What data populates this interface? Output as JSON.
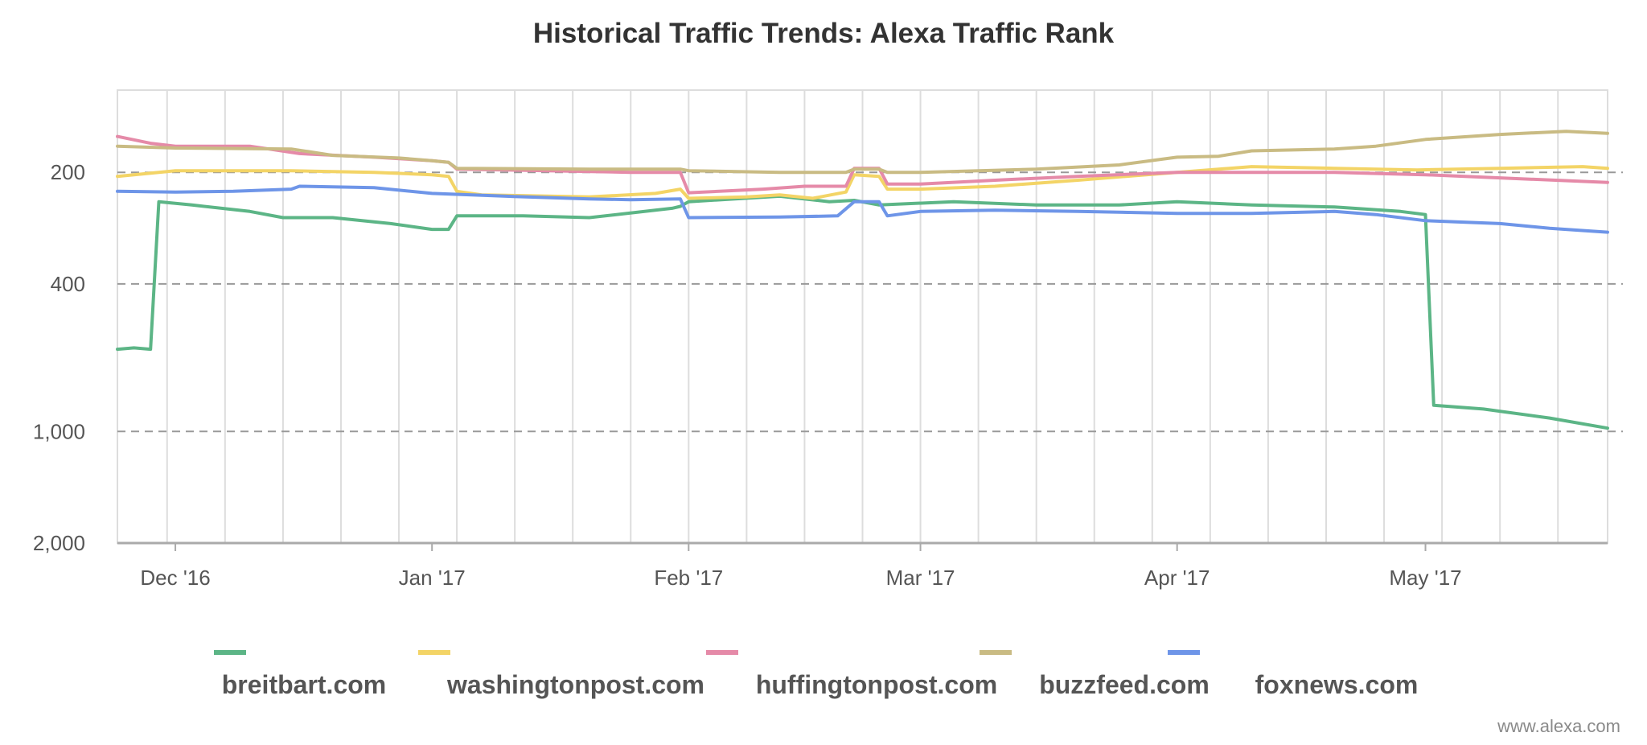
{
  "chart_data": {
    "type": "line",
    "title": "Historical Traffic Trends: Alexa Traffic Rank",
    "xlabel": "",
    "ylabel": "",
    "y_scale": "log",
    "y_reversed": true,
    "ylim": [
      2000,
      120
    ],
    "yticks": [
      200,
      400,
      1000,
      2000
    ],
    "ytick_labels": [
      "200",
      "400",
      "1,000",
      "2,000"
    ],
    "xlim": [
      "2016-11-24",
      "2017-05-23"
    ],
    "xticks": [
      "2016-12-01",
      "2017-01-01",
      "2017-02-01",
      "2017-03-01",
      "2017-04-01",
      "2017-05-01"
    ],
    "xtick_labels": [
      "Dec '16",
      "Jan '17",
      "Feb '17",
      "Mar '17",
      "Apr '17",
      "May '17"
    ],
    "grid": "vertical minor lines every 7 days; dashed horizontal lines at y ticks",
    "legend_placement": "bottom",
    "series": [
      {
        "name": "breitbart.com",
        "color": "#5cb586",
        "points": [
          [
            "2016-11-24",
            600
          ],
          [
            "2016-11-26",
            595
          ],
          [
            "2016-11-28",
            600
          ],
          [
            "2016-11-29",
            240
          ],
          [
            "2016-12-03",
            245
          ],
          [
            "2016-12-10",
            255
          ],
          [
            "2016-12-14",
            265
          ],
          [
            "2016-12-20",
            265
          ],
          [
            "2016-12-27",
            275
          ],
          [
            "2017-01-01",
            285
          ],
          [
            "2017-01-03",
            285
          ],
          [
            "2017-01-04",
            262
          ],
          [
            "2017-01-12",
            262
          ],
          [
            "2017-01-20",
            265
          ],
          [
            "2017-01-30",
            250
          ],
          [
            "2017-01-31",
            247
          ],
          [
            "2017-02-01",
            240
          ],
          [
            "2017-02-12",
            232
          ],
          [
            "2017-02-18",
            240
          ],
          [
            "2017-02-21",
            238
          ],
          [
            "2017-02-24",
            245
          ],
          [
            "2017-03-05",
            240
          ],
          [
            "2017-03-15",
            245
          ],
          [
            "2017-03-20",
            245
          ],
          [
            "2017-03-25",
            245
          ],
          [
            "2017-04-01",
            240
          ],
          [
            "2017-04-10",
            245
          ],
          [
            "2017-04-20",
            248
          ],
          [
            "2017-04-28",
            255
          ],
          [
            "2017-05-01",
            260
          ],
          [
            "2017-05-02",
            850
          ],
          [
            "2017-05-08",
            870
          ],
          [
            "2017-05-16",
            920
          ],
          [
            "2017-05-23",
            980
          ]
        ]
      },
      {
        "name": "washingtonpost.com",
        "color": "#f3d466",
        "points": [
          [
            "2016-11-24",
            205
          ],
          [
            "2016-12-01",
            198
          ],
          [
            "2016-12-15",
            198
          ],
          [
            "2016-12-25",
            200
          ],
          [
            "2017-01-01",
            203
          ],
          [
            "2017-01-03",
            205
          ],
          [
            "2017-01-04",
            225
          ],
          [
            "2017-01-07",
            230
          ],
          [
            "2017-01-20",
            233
          ],
          [
            "2017-01-28",
            228
          ],
          [
            "2017-01-31",
            222
          ],
          [
            "2017-02-01",
            235
          ],
          [
            "2017-02-08",
            233
          ],
          [
            "2017-02-12",
            230
          ],
          [
            "2017-02-16",
            235
          ],
          [
            "2017-02-20",
            226
          ],
          [
            "2017-02-21",
            203
          ],
          [
            "2017-02-24",
            205
          ],
          [
            "2017-02-25",
            222
          ],
          [
            "2017-03-01",
            222
          ],
          [
            "2017-03-10",
            218
          ],
          [
            "2017-03-20",
            210
          ],
          [
            "2017-04-01",
            200
          ],
          [
            "2017-04-10",
            193
          ],
          [
            "2017-04-20",
            195
          ],
          [
            "2017-04-30",
            197
          ],
          [
            "2017-05-10",
            195
          ],
          [
            "2017-05-20",
            193
          ],
          [
            "2017-05-23",
            195
          ]
        ]
      },
      {
        "name": "huffingtonpost.com",
        "color": "#e58aa8",
        "points": [
          [
            "2016-11-24",
            160
          ],
          [
            "2016-11-28",
            167
          ],
          [
            "2016-12-01",
            170
          ],
          [
            "2016-12-10",
            170
          ],
          [
            "2016-12-16",
            178
          ],
          [
            "2016-12-25",
            182
          ],
          [
            "2017-01-01",
            186
          ],
          [
            "2017-01-03",
            188
          ],
          [
            "2017-01-04",
            196
          ],
          [
            "2017-01-15",
            198
          ],
          [
            "2017-01-25",
            200
          ],
          [
            "2017-01-31",
            200
          ],
          [
            "2017-02-01",
            227
          ],
          [
            "2017-02-10",
            222
          ],
          [
            "2017-02-15",
            218
          ],
          [
            "2017-02-20",
            218
          ],
          [
            "2017-02-21",
            195
          ],
          [
            "2017-02-24",
            195
          ],
          [
            "2017-02-25",
            215
          ],
          [
            "2017-03-01",
            215
          ],
          [
            "2017-03-10",
            210
          ],
          [
            "2017-03-20",
            205
          ],
          [
            "2017-04-01",
            200
          ],
          [
            "2017-04-10",
            200
          ],
          [
            "2017-04-20",
            200
          ],
          [
            "2017-05-01",
            203
          ],
          [
            "2017-05-10",
            207
          ],
          [
            "2017-05-23",
            213
          ]
        ]
      },
      {
        "name": "buzzfeed.com",
        "color": "#c9bb83",
        "points": [
          [
            "2016-11-24",
            170
          ],
          [
            "2016-12-01",
            172
          ],
          [
            "2016-12-15",
            173
          ],
          [
            "2016-12-20",
            180
          ],
          [
            "2016-12-28",
            183
          ],
          [
            "2017-01-01",
            186
          ],
          [
            "2017-01-03",
            188
          ],
          [
            "2017-01-04",
            195
          ],
          [
            "2017-01-20",
            196
          ],
          [
            "2017-01-31",
            196
          ],
          [
            "2017-02-01",
            198
          ],
          [
            "2017-02-12",
            200
          ],
          [
            "2017-02-20",
            200
          ],
          [
            "2017-02-21",
            196
          ],
          [
            "2017-02-24",
            196
          ],
          [
            "2017-02-25",
            200
          ],
          [
            "2017-03-01",
            200
          ],
          [
            "2017-03-15",
            196
          ],
          [
            "2017-03-25",
            191
          ],
          [
            "2017-04-01",
            182
          ],
          [
            "2017-04-06",
            181
          ],
          [
            "2017-04-10",
            175
          ],
          [
            "2017-04-20",
            173
          ],
          [
            "2017-04-25",
            170
          ],
          [
            "2017-05-01",
            163
          ],
          [
            "2017-05-10",
            158
          ],
          [
            "2017-05-18",
            155
          ],
          [
            "2017-05-23",
            157
          ]
        ]
      },
      {
        "name": "foxnews.com",
        "color": "#6e95e8",
        "points": [
          [
            "2016-11-24",
            225
          ],
          [
            "2016-12-01",
            226
          ],
          [
            "2016-12-08",
            225
          ],
          [
            "2016-12-15",
            222
          ],
          [
            "2016-12-16",
            218
          ],
          [
            "2016-12-25",
            220
          ],
          [
            "2017-01-01",
            228
          ],
          [
            "2017-01-10",
            232
          ],
          [
            "2017-01-20",
            236
          ],
          [
            "2017-01-25",
            237
          ],
          [
            "2017-01-31",
            236
          ],
          [
            "2017-02-01",
            265
          ],
          [
            "2017-02-12",
            264
          ],
          [
            "2017-02-19",
            262
          ],
          [
            "2017-02-21",
            240
          ],
          [
            "2017-02-24",
            240
          ],
          [
            "2017-02-25",
            262
          ],
          [
            "2017-03-01",
            255
          ],
          [
            "2017-03-10",
            253
          ],
          [
            "2017-03-20",
            255
          ],
          [
            "2017-04-01",
            258
          ],
          [
            "2017-04-10",
            258
          ],
          [
            "2017-04-20",
            255
          ],
          [
            "2017-04-25",
            260
          ],
          [
            "2017-05-01",
            270
          ],
          [
            "2017-05-10",
            275
          ],
          [
            "2017-05-16",
            283
          ],
          [
            "2017-05-23",
            290
          ]
        ]
      }
    ]
  },
  "watermark": "www.alexa.com"
}
